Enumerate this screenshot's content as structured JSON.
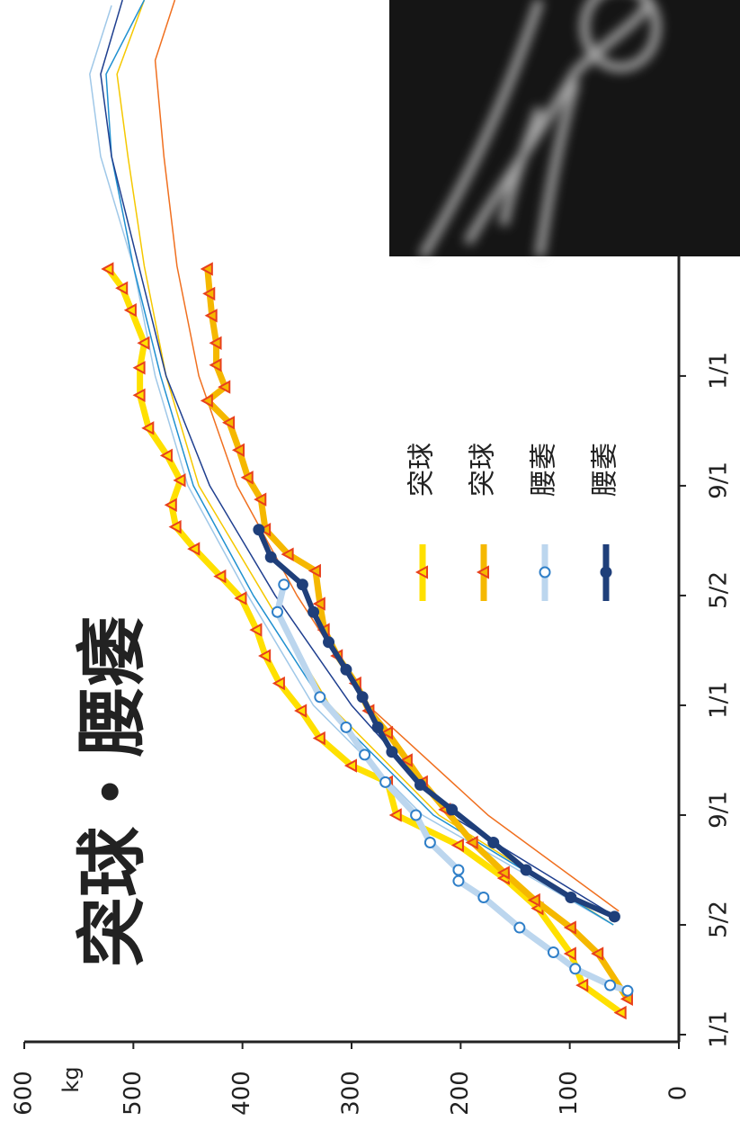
{
  "chart_data": {
    "type": "line",
    "title": "突球・腰痿",
    "y_label": "kg",
    "ylim": [
      0,
      600
    ],
    "yticks": [
      0,
      100,
      200,
      300,
      400,
      500,
      600
    ],
    "xlim": [
      0,
      37.7
    ],
    "xticks": [
      {
        "value": 0,
        "label": "1/1"
      },
      {
        "value": 4,
        "label": "5/2"
      },
      {
        "value": 8,
        "label": "9/1"
      },
      {
        "value": 12,
        "label": "1/1"
      },
      {
        "value": 16,
        "label": "5/2"
      },
      {
        "value": 20,
        "label": "9/1"
      },
      {
        "value": 24,
        "label": "1/1"
      }
    ],
    "series": [
      {
        "name": "突球",
        "color": "#ffe000",
        "marker": "triangle",
        "marker_color": "#e8401c",
        "x": [
          0.8,
          1.8,
          2.95,
          4.6,
          5.7,
          6.9,
          8.0,
          9.2,
          9.8,
          10.8,
          11.8,
          12.8,
          13.8,
          14.75,
          15.9,
          16.7,
          17.7,
          18.5,
          19.3,
          20.2,
          21.1,
          22.1,
          23.3,
          24.3,
          25.2,
          26.4,
          27.2,
          27.9
        ],
        "values": [
          53,
          88,
          99,
          129,
          160,
          202,
          259,
          267,
          300,
          329,
          346,
          366,
          379,
          387,
          401,
          420,
          444,
          461,
          465,
          457,
          469,
          486,
          494,
          494,
          490,
          502,
          510,
          523
        ]
      },
      {
        "name": "突球",
        "color": "#f5b800",
        "marker": "triangle",
        "marker_color": "#e8401c",
        "x": [
          1.3,
          2.95,
          3.9,
          4.9,
          5.9,
          7.0,
          8.2,
          9.2,
          10.0,
          11.0,
          11.8,
          12.8,
          13.8,
          14.75,
          15.7,
          16.9,
          17.5,
          18.4,
          19.5,
          20.3,
          21.3,
          22.3,
          23.1,
          23.6,
          24.4,
          25.2,
          26.2,
          27.0,
          27.9
        ],
        "values": [
          47,
          74,
          99,
          132,
          160,
          189,
          214,
          235,
          249,
          267,
          284,
          296,
          313,
          325,
          329,
          333,
          358,
          379,
          383,
          395,
          403,
          412,
          432,
          416,
          424,
          424,
          428,
          430,
          432
        ]
      },
      {
        "name": "腰萎",
        "color": "#bcd6ee",
        "marker": "circle",
        "marker_color": "#2f7fc8",
        "x": [
          1.6,
          1.8,
          2.4,
          3.0,
          3.9,
          5.0,
          5.6,
          6.0,
          7.0,
          8.0,
          9.2,
          10.2,
          11.2,
          12.3,
          15.4,
          16.4
        ],
        "values": [
          47,
          63,
          95,
          115,
          146,
          179,
          202,
          202,
          228,
          241,
          269,
          288,
          305,
          329,
          368,
          362
        ]
      },
      {
        "name": "腰萎",
        "color": "#1f3f7a",
        "marker": "circle",
        "marker_color": "#1f3f7a",
        "x": [
          4.3,
          5.0,
          6.0,
          7.0,
          8.2,
          9.1,
          10.3,
          11.2,
          12.3,
          13.3,
          14.3,
          15.4,
          16.4,
          17.4,
          18.4
        ],
        "values": [
          59,
          99,
          140,
          170,
          208,
          237,
          263,
          276,
          290,
          305,
          321,
          335,
          345,
          374,
          385
        ]
      },
      {
        "color": "#f07020",
        "x": [
          4.5,
          8,
          12,
          16,
          20,
          24,
          28,
          32,
          35.5,
          37.7
        ],
        "values": [
          55,
          175,
          285,
          350,
          405,
          440,
          460,
          472,
          480,
          462
        ]
      },
      {
        "color": "#f5c800",
        "x": [
          4,
          8,
          12,
          16,
          20,
          24,
          28,
          32,
          35,
          37.7
        ],
        "values": [
          60,
          220,
          320,
          380,
          440,
          470,
          490,
          505,
          515,
          490
        ]
      },
      {
        "color": "#a0c8e8",
        "x": [
          4,
          8,
          12,
          16,
          20,
          24,
          28,
          32,
          35,
          37.5
        ],
        "values": [
          60,
          235,
          335,
          395,
          450,
          480,
          500,
          530,
          540,
          520
        ]
      },
      {
        "color": "#2090d0",
        "x": [
          4,
          8,
          12,
          16,
          20,
          24,
          28,
          32,
          35,
          37.7
        ],
        "values": [
          60,
          225,
          325,
          390,
          445,
          475,
          500,
          520,
          525,
          490
        ]
      },
      {
        "color": "#1f3f8f",
        "x": [
          4.3,
          8,
          12,
          16,
          20,
          24,
          28,
          32,
          35,
          37.7
        ],
        "values": [
          58,
          210,
          300,
          370,
          430,
          470,
          495,
          520,
          530,
          510
        ]
      }
    ]
  }
}
